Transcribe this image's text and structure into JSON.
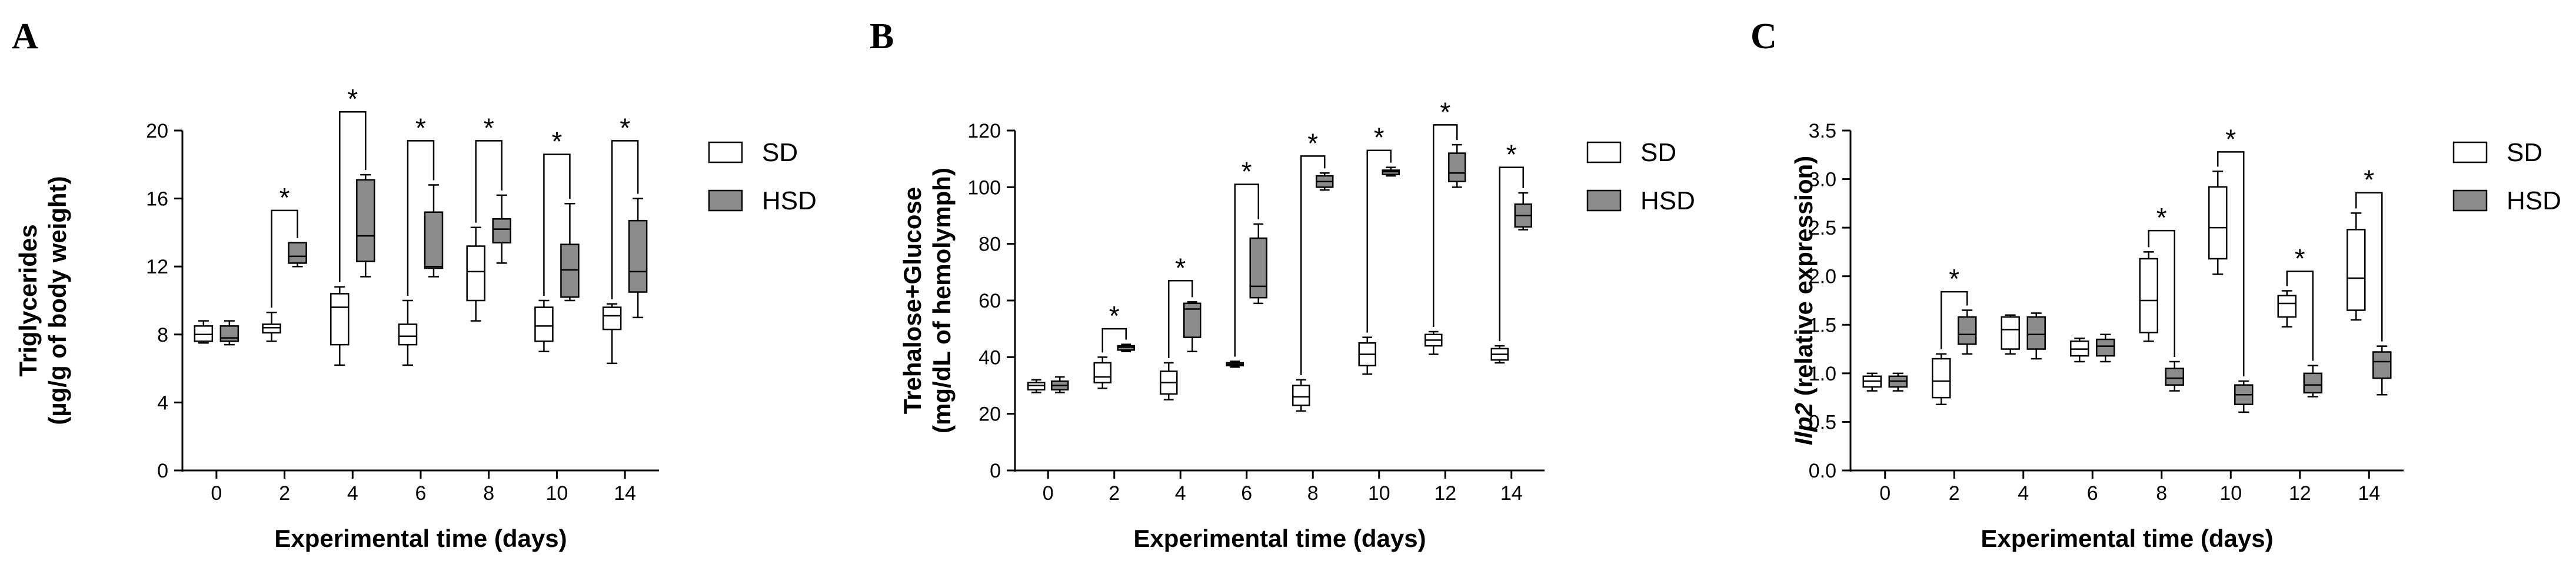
{
  "chart_data": [
    {
      "type": "box",
      "panel_label": "A",
      "ylabel_lines": [
        "Triglycerides",
        "(µg/g of body weight)"
      ],
      "xlabel": "Experimental time (days)",
      "ylim": [
        0,
        20
      ],
      "yticks": [
        0,
        4,
        8,
        12,
        16,
        20
      ],
      "categories": [
        "0",
        "2",
        "4",
        "6",
        "8",
        "10",
        "14"
      ],
      "legend": [
        {
          "name": "SD",
          "color": "#ffffff"
        },
        {
          "name": "HSD",
          "color": "#8c8c8c"
        }
      ],
      "series": [
        {
          "name": "SD",
          "fill": "#ffffff",
          "boxes": [
            [
              7.5,
              7.6,
              8.0,
              8.5,
              8.8
            ],
            [
              7.6,
              8.1,
              8.4,
              8.6,
              9.3
            ],
            [
              6.2,
              7.4,
              9.6,
              10.4,
              10.8
            ],
            [
              6.2,
              7.4,
              7.9,
              8.6,
              10.0
            ],
            [
              8.8,
              10.0,
              11.7,
              13.2,
              14.3
            ],
            [
              7.0,
              7.6,
              8.5,
              9.6,
              10.0
            ],
            [
              6.3,
              8.3,
              9.1,
              9.6,
              9.8
            ]
          ]
        },
        {
          "name": "HSD",
          "fill": "#8c8c8c",
          "boxes": [
            [
              7.4,
              7.6,
              7.8,
              8.5,
              8.8
            ],
            [
              12.0,
              12.2,
              12.6,
              13.4,
              13.4
            ],
            [
              11.4,
              12.3,
              13.8,
              17.1,
              17.4
            ],
            [
              11.4,
              11.9,
              12.0,
              15.2,
              16.8
            ],
            [
              12.2,
              13.4,
              14.2,
              14.8,
              16.2
            ],
            [
              10.0,
              10.2,
              11.8,
              13.3,
              15.7
            ],
            [
              9.0,
              10.5,
              11.7,
              14.7,
              16.0
            ]
          ]
        }
      ],
      "significance": [
        {
          "category": "2",
          "bracket_y": 15.3,
          "label": "*"
        },
        {
          "category": "4",
          "bracket_y": 21.1,
          "label": "*"
        },
        {
          "category": "6",
          "bracket_y": 19.4,
          "label": "*"
        },
        {
          "category": "8",
          "bracket_y": 19.4,
          "label": "*"
        },
        {
          "category": "10",
          "bracket_y": 18.6,
          "label": "*"
        },
        {
          "category": "14",
          "bracket_y": 19.4,
          "label": "*"
        }
      ]
    },
    {
      "type": "box",
      "panel_label": "B",
      "ylabel_lines": [
        "Trehalose+Glucose",
        "(mg/dL of hemolymph)"
      ],
      "xlabel": "Experimental time (days)",
      "ylim": [
        0,
        120
      ],
      "yticks": [
        0,
        20,
        40,
        60,
        80,
        100,
        120
      ],
      "categories": [
        "0",
        "2",
        "4",
        "6",
        "8",
        "10",
        "12",
        "14"
      ],
      "legend": [
        {
          "name": "SD",
          "color": "#ffffff"
        },
        {
          "name": "HSD",
          "color": "#8c8c8c"
        }
      ],
      "series": [
        {
          "name": "SD",
          "fill": "#ffffff",
          "boxes": [
            [
              27.5,
              28.5,
              30.0,
              31.0,
              32.0
            ],
            [
              29.0,
              31.0,
              33.0,
              38.0,
              40.0
            ],
            [
              25.0,
              27.0,
              31.0,
              35.0,
              38.0
            ],
            [
              36.5,
              37.0,
              37.5,
              38.0,
              38.5
            ],
            [
              21.0,
              23.0,
              26.0,
              30.0,
              32.0
            ],
            [
              34.0,
              37.0,
              41.0,
              45.0,
              47.0
            ],
            [
              41.0,
              44.0,
              46.0,
              48.0,
              49.0
            ],
            [
              38.0,
              39.0,
              41.0,
              43.0,
              44.0
            ]
          ]
        },
        {
          "name": "HSD",
          "fill": "#8c8c8c",
          "boxes": [
            [
              27.5,
              28.5,
              30.0,
              31.5,
              33.0
            ],
            [
              42.0,
              42.5,
              43.5,
              44.0,
              44.5
            ],
            [
              42.0,
              47.0,
              57.0,
              59.0,
              59.5
            ],
            [
              59.0,
              61.0,
              65.0,
              82.0,
              87.0
            ],
            [
              99.0,
              100.0,
              102.0,
              104.0,
              105.0
            ],
            [
              104.0,
              104.5,
              105.5,
              106.0,
              107.0
            ],
            [
              100.0,
              102.0,
              105.0,
              112.0,
              115.0
            ],
            [
              85.0,
              86.0,
              90.0,
              94.0,
              98.0
            ]
          ]
        }
      ],
      "significance": [
        {
          "category": "2",
          "bracket_y": 50,
          "label": "*"
        },
        {
          "category": "4",
          "bracket_y": 67,
          "label": "*"
        },
        {
          "category": "6",
          "bracket_y": 101,
          "label": "*"
        },
        {
          "category": "8",
          "bracket_y": 111,
          "label": "*"
        },
        {
          "category": "10",
          "bracket_y": 113,
          "label": "*"
        },
        {
          "category": "12",
          "bracket_y": 122,
          "label": "*"
        },
        {
          "category": "14",
          "bracket_y": 107,
          "label": "*"
        }
      ]
    },
    {
      "type": "box",
      "panel_label": "C",
      "ylabel_italic": "Ilp2",
      "ylabel_rest": " (relative expression)",
      "xlabel": "Experimental time (days)",
      "ylim": [
        0,
        3.5
      ],
      "yticks": [
        "0.0",
        "0.5",
        "1.0",
        "1.5",
        "2.0",
        "2.5",
        "3.0",
        "3.5"
      ],
      "categories": [
        "0",
        "2",
        "4",
        "6",
        "8",
        "10",
        "12",
        "14"
      ],
      "legend": [
        {
          "name": "SD",
          "color": "#ffffff"
        },
        {
          "name": "HSD",
          "color": "#8c8c8c"
        }
      ],
      "series": [
        {
          "name": "SD",
          "fill": "#ffffff",
          "boxes": [
            [
              0.82,
              0.86,
              0.92,
              0.97,
              1.0
            ],
            [
              0.68,
              0.75,
              0.92,
              1.15,
              1.2
            ],
            [
              1.2,
              1.25,
              1.45,
              1.58,
              1.6
            ],
            [
              1.12,
              1.18,
              1.25,
              1.33,
              1.36
            ],
            [
              1.33,
              1.42,
              1.75,
              2.18,
              2.25
            ],
            [
              2.02,
              2.18,
              2.5,
              2.92,
              3.08
            ],
            [
              1.48,
              1.58,
              1.72,
              1.8,
              1.85
            ],
            [
              1.55,
              1.65,
              1.98,
              2.48,
              2.65
            ]
          ]
        },
        {
          "name": "HSD",
          "fill": "#8c8c8c",
          "boxes": [
            [
              0.82,
              0.86,
              0.92,
              0.97,
              1.0
            ],
            [
              1.2,
              1.3,
              1.4,
              1.58,
              1.65
            ],
            [
              1.15,
              1.25,
              1.4,
              1.58,
              1.62
            ],
            [
              1.12,
              1.18,
              1.28,
              1.35,
              1.4
            ],
            [
              0.82,
              0.88,
              0.95,
              1.05,
              1.12
            ],
            [
              0.6,
              0.68,
              0.78,
              0.88,
              0.92
            ],
            [
              0.76,
              0.8,
              0.88,
              1.0,
              1.08
            ],
            [
              0.78,
              0.95,
              1.12,
              1.22,
              1.28
            ]
          ]
        }
      ],
      "significance": [
        {
          "category": "2",
          "bracket_y": 1.84,
          "label": "*"
        },
        {
          "category": "8",
          "bracket_y": 2.47,
          "label": "*"
        },
        {
          "category": "10",
          "bracket_y": 3.28,
          "label": "*"
        },
        {
          "category": "12",
          "bracket_y": 2.05,
          "label": "*"
        },
        {
          "category": "14",
          "bracket_y": 2.86,
          "label": "*"
        }
      ]
    }
  ]
}
